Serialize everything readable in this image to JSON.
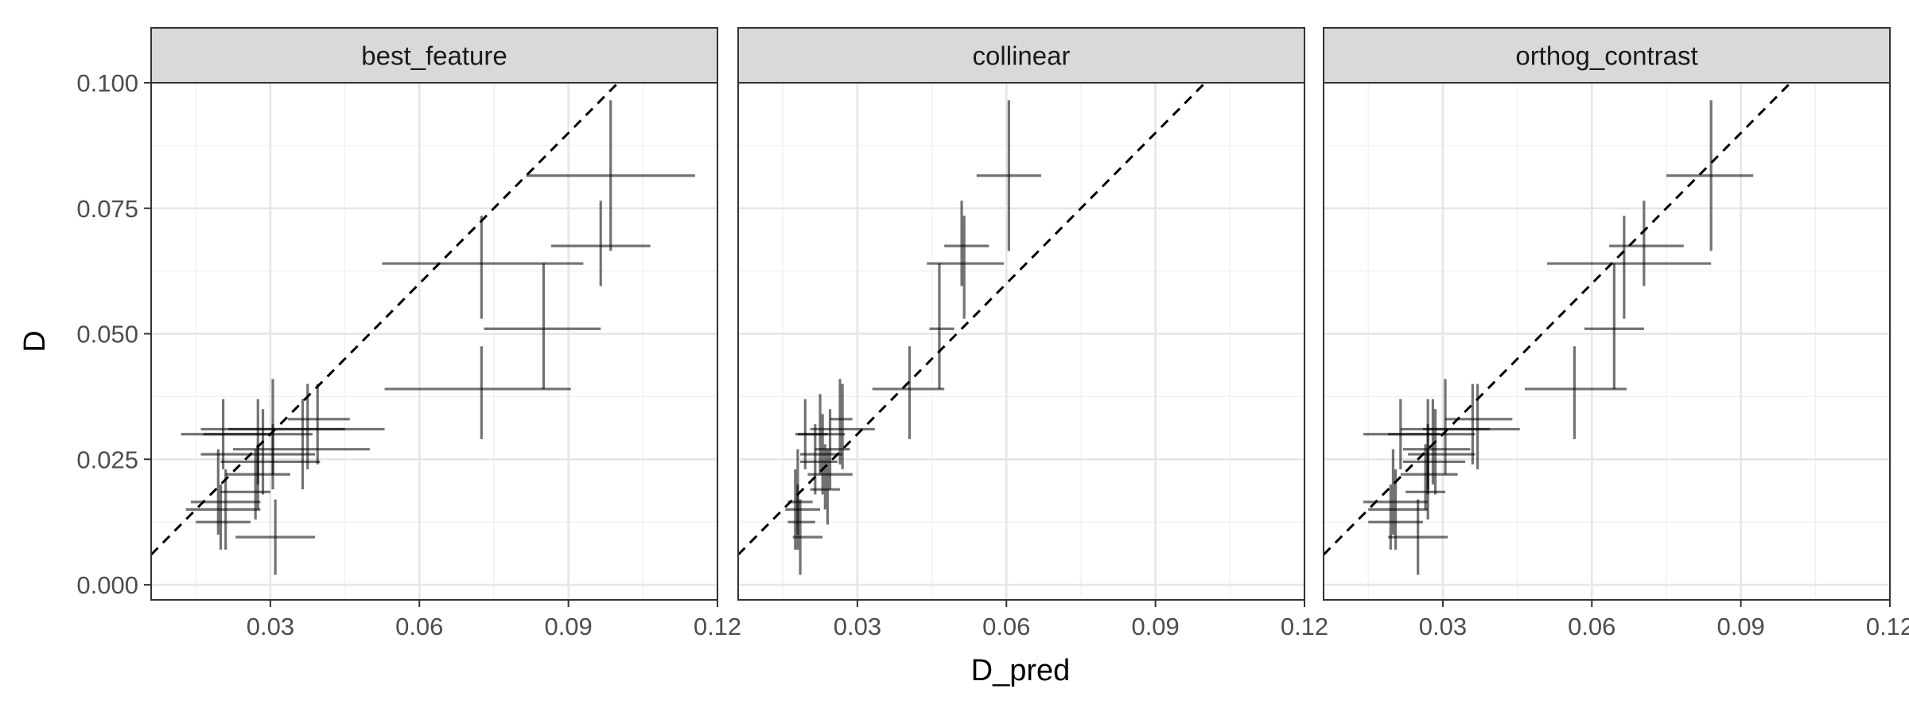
{
  "chart_data": {
    "type": "scatter",
    "xlabel": "D_pred",
    "ylabel": "D",
    "xlim": [
      0.006,
      0.12
    ],
    "ylim": [
      -0.003,
      0.1
    ],
    "x_ticks": [
      0.03,
      0.06,
      0.09,
      0.12
    ],
    "x_tick_labels": [
      "0.03",
      "0.06",
      "0.09",
      "0.12"
    ],
    "y_ticks": [
      0.0,
      0.025,
      0.05,
      0.075,
      0.1
    ],
    "y_tick_labels": [
      "0.000",
      "0.025",
      "0.050",
      "0.075",
      "0.100"
    ],
    "grid": true,
    "reference_line": "y = x (dashed)",
    "mark": "crosshair error bars (x and y intervals)",
    "panels": [
      {
        "title": "best_feature",
        "points": [
          {
            "x": 0.0985,
            "y": 0.0815,
            "xmin": 0.0815,
            "xmax": 0.1155,
            "ymin": 0.0665,
            "ymax": 0.0965
          },
          {
            "x": 0.0965,
            "y": 0.0675,
            "xmin": 0.0865,
            "xmax": 0.1065,
            "ymin": 0.0595,
            "ymax": 0.0765
          },
          {
            "x": 0.0725,
            "y": 0.064,
            "xmin": 0.0525,
            "xmax": 0.093,
            "ymin": 0.053,
            "ymax": 0.0735
          },
          {
            "x": 0.085,
            "y": 0.051,
            "xmin": 0.073,
            "xmax": 0.0965,
            "ymin": 0.039,
            "ymax": 0.064
          },
          {
            "x": 0.0725,
            "y": 0.039,
            "xmin": 0.053,
            "xmax": 0.0905,
            "ymin": 0.029,
            "ymax": 0.0475
          },
          {
            "x": 0.0305,
            "y": 0.031,
            "xmin": 0.016,
            "xmax": 0.045,
            "ymin": 0.022,
            "ymax": 0.041
          },
          {
            "x": 0.0375,
            "y": 0.031,
            "xmin": 0.0215,
            "xmax": 0.053,
            "ymin": 0.023,
            "ymax": 0.04
          },
          {
            "x": 0.0395,
            "y": 0.033,
            "xmin": 0.0335,
            "xmax": 0.046,
            "ymin": 0.024,
            "ymax": 0.04
          },
          {
            "x": 0.0275,
            "y": 0.03,
            "xmin": 0.0165,
            "xmax": 0.0385,
            "ymin": 0.02,
            "ymax": 0.037
          },
          {
            "x": 0.0365,
            "y": 0.027,
            "xmin": 0.0225,
            "xmax": 0.05,
            "ymin": 0.019,
            "ymax": 0.037
          },
          {
            "x": 0.0285,
            "y": 0.026,
            "xmin": 0.016,
            "xmax": 0.039,
            "ymin": 0.018,
            "ymax": 0.035
          },
          {
            "x": 0.0305,
            "y": 0.0245,
            "xmin": 0.02,
            "xmax": 0.04,
            "ymin": 0.019,
            "ymax": 0.032
          },
          {
            "x": 0.0205,
            "y": 0.03,
            "xmin": 0.012,
            "xmax": 0.03,
            "ymin": 0.023,
            "ymax": 0.037
          },
          {
            "x": 0.0275,
            "y": 0.022,
            "xmin": 0.021,
            "xmax": 0.034,
            "ymin": 0.015,
            "ymax": 0.028
          },
          {
            "x": 0.027,
            "y": 0.0185,
            "xmin": 0.02,
            "xmax": 0.03,
            "ymin": 0.013,
            "ymax": 0.027
          },
          {
            "x": 0.0195,
            "y": 0.0165,
            "xmin": 0.014,
            "xmax": 0.028,
            "ymin": 0.01,
            "ymax": 0.027
          },
          {
            "x": 0.021,
            "y": 0.015,
            "xmin": 0.013,
            "xmax": 0.028,
            "ymin": 0.007,
            "ymax": 0.023
          },
          {
            "x": 0.02,
            "y": 0.0125,
            "xmin": 0.015,
            "xmax": 0.026,
            "ymin": 0.007,
            "ymax": 0.02
          },
          {
            "x": 0.031,
            "y": 0.0095,
            "xmin": 0.023,
            "xmax": 0.039,
            "ymin": 0.002,
            "ymax": 0.017
          }
        ]
      },
      {
        "title": "collinear",
        "points": [
          {
            "x": 0.0605,
            "y": 0.0815,
            "xmin": 0.054,
            "xmax": 0.067,
            "ymin": 0.0665,
            "ymax": 0.0965
          },
          {
            "x": 0.051,
            "y": 0.0675,
            "xmin": 0.0475,
            "xmax": 0.0565,
            "ymin": 0.0595,
            "ymax": 0.0765
          },
          {
            "x": 0.0515,
            "y": 0.064,
            "xmin": 0.044,
            "xmax": 0.0595,
            "ymin": 0.053,
            "ymax": 0.0735
          },
          {
            "x": 0.0465,
            "y": 0.051,
            "xmin": 0.0445,
            "xmax": 0.0495,
            "ymin": 0.039,
            "ymax": 0.064
          },
          {
            "x": 0.0405,
            "y": 0.039,
            "xmin": 0.033,
            "xmax": 0.0475,
            "ymin": 0.029,
            "ymax": 0.0475
          },
          {
            "x": 0.0265,
            "y": 0.033,
            "xmin": 0.0245,
            "xmax": 0.029,
            "ymin": 0.024,
            "ymax": 0.041
          },
          {
            "x": 0.027,
            "y": 0.031,
            "xmin": 0.0205,
            "xmax": 0.0335,
            "ymin": 0.023,
            "ymax": 0.04
          },
          {
            "x": 0.0225,
            "y": 0.03,
            "xmin": 0.018,
            "xmax": 0.0275,
            "ymin": 0.022,
            "ymax": 0.038
          },
          {
            "x": 0.0195,
            "y": 0.03,
            "xmin": 0.0175,
            "xmax": 0.024,
            "ymin": 0.023,
            "ymax": 0.037
          },
          {
            "x": 0.0245,
            "y": 0.027,
            "xmin": 0.0215,
            "xmax": 0.0285,
            "ymin": 0.019,
            "ymax": 0.035
          },
          {
            "x": 0.023,
            "y": 0.026,
            "xmin": 0.0185,
            "xmax": 0.027,
            "ymin": 0.018,
            "ymax": 0.034
          },
          {
            "x": 0.0215,
            "y": 0.0245,
            "xmin": 0.0185,
            "xmax": 0.026,
            "ymin": 0.018,
            "ymax": 0.032
          },
          {
            "x": 0.0235,
            "y": 0.022,
            "xmin": 0.02,
            "xmax": 0.029,
            "ymin": 0.015,
            "ymax": 0.028
          },
          {
            "x": 0.024,
            "y": 0.019,
            "xmin": 0.0205,
            "xmax": 0.0265,
            "ymin": 0.012,
            "ymax": 0.027
          },
          {
            "x": 0.018,
            "y": 0.0165,
            "xmin": 0.016,
            "xmax": 0.021,
            "ymin": 0.01,
            "ymax": 0.027
          },
          {
            "x": 0.0175,
            "y": 0.015,
            "xmin": 0.0155,
            "xmax": 0.0225,
            "ymin": 0.007,
            "ymax": 0.023
          },
          {
            "x": 0.018,
            "y": 0.0125,
            "xmin": 0.016,
            "xmax": 0.0215,
            "ymin": 0.007,
            "ymax": 0.02
          },
          {
            "x": 0.0185,
            "y": 0.0095,
            "xmin": 0.017,
            "xmax": 0.023,
            "ymin": 0.002,
            "ymax": 0.017
          }
        ]
      },
      {
        "title": "orthog_contrast",
        "points": [
          {
            "x": 0.084,
            "y": 0.0815,
            "xmin": 0.075,
            "xmax": 0.0925,
            "ymin": 0.0665,
            "ymax": 0.0965
          },
          {
            "x": 0.0705,
            "y": 0.0675,
            "xmin": 0.0635,
            "xmax": 0.0785,
            "ymin": 0.0595,
            "ymax": 0.0765
          },
          {
            "x": 0.0665,
            "y": 0.064,
            "xmin": 0.051,
            "xmax": 0.084,
            "ymin": 0.053,
            "ymax": 0.0735
          },
          {
            "x": 0.0645,
            "y": 0.051,
            "xmin": 0.0585,
            "xmax": 0.0705,
            "ymin": 0.039,
            "ymax": 0.064
          },
          {
            "x": 0.0565,
            "y": 0.039,
            "xmin": 0.0465,
            "xmax": 0.067,
            "ymin": 0.029,
            "ymax": 0.0475
          },
          {
            "x": 0.0305,
            "y": 0.031,
            "xmin": 0.0215,
            "xmax": 0.0395,
            "ymin": 0.022,
            "ymax": 0.041
          },
          {
            "x": 0.036,
            "y": 0.033,
            "xmin": 0.0305,
            "xmax": 0.044,
            "ymin": 0.024,
            "ymax": 0.04
          },
          {
            "x": 0.037,
            "y": 0.031,
            "xmin": 0.026,
            "xmax": 0.0455,
            "ymin": 0.023,
            "ymax": 0.04
          },
          {
            "x": 0.028,
            "y": 0.03,
            "xmin": 0.019,
            "xmax": 0.0365,
            "ymin": 0.02,
            "ymax": 0.037
          },
          {
            "x": 0.027,
            "y": 0.027,
            "xmin": 0.022,
            "xmax": 0.0355,
            "ymin": 0.019,
            "ymax": 0.037
          },
          {
            "x": 0.0285,
            "y": 0.026,
            "xmin": 0.023,
            "xmax": 0.0365,
            "ymin": 0.018,
            "ymax": 0.035
          },
          {
            "x": 0.027,
            "y": 0.0245,
            "xmin": 0.022,
            "xmax": 0.0345,
            "ymin": 0.018,
            "ymax": 0.032
          },
          {
            "x": 0.0215,
            "y": 0.03,
            "xmin": 0.014,
            "xmax": 0.0295,
            "ymin": 0.023,
            "ymax": 0.037
          },
          {
            "x": 0.0265,
            "y": 0.022,
            "xmin": 0.0215,
            "xmax": 0.033,
            "ymin": 0.015,
            "ymax": 0.028
          },
          {
            "x": 0.027,
            "y": 0.0185,
            "xmin": 0.0225,
            "xmax": 0.0305,
            "ymin": 0.013,
            "ymax": 0.027
          },
          {
            "x": 0.02,
            "y": 0.0165,
            "xmin": 0.014,
            "xmax": 0.027,
            "ymin": 0.01,
            "ymax": 0.027
          },
          {
            "x": 0.0205,
            "y": 0.015,
            "xmin": 0.015,
            "xmax": 0.027,
            "ymin": 0.007,
            "ymax": 0.023
          },
          {
            "x": 0.0195,
            "y": 0.0125,
            "xmin": 0.015,
            "xmax": 0.026,
            "ymin": 0.007,
            "ymax": 0.02
          },
          {
            "x": 0.025,
            "y": 0.0095,
            "xmin": 0.019,
            "xmax": 0.031,
            "ymin": 0.002,
            "ymax": 0.017
          }
        ]
      }
    ]
  }
}
